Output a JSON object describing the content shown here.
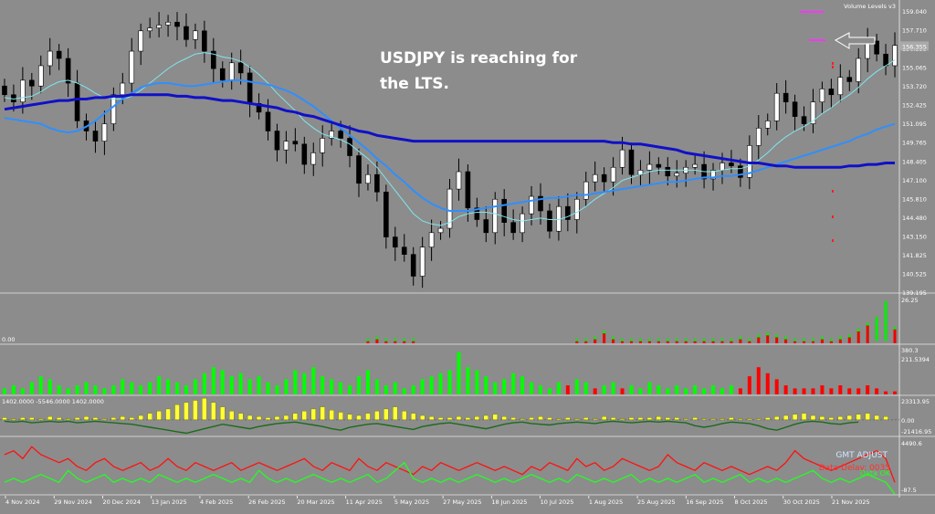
{
  "chart_data": {
    "type": "candlestick",
    "annotation": [
      "USDJPY is reaching for",
      "the LTS."
    ],
    "indicator_label": "Volume Levels v3",
    "price_axis": [
      "159.040",
      "157.710",
      "156.355",
      "155.065",
      "153.720",
      "152.425",
      "151.095",
      "149.765",
      "148.405",
      "147.100",
      "145.810",
      "144.480",
      "143.150",
      "141.825",
      "140.525",
      "139.195"
    ],
    "current_price": "156.355",
    "x_labels": [
      "4 Nov 2024",
      "29 Nov 2024",
      "20 Dec 2024",
      "13 Jan 2025",
      "4 Feb 2025",
      "26 Feb 2025",
      "20 Mar 2025",
      "11 Apr 2025",
      "5 May 2025",
      "27 May 2025",
      "18 Jun 2025",
      "10 Jul 2025",
      "1 Aug 2025",
      "25 Aug 2025",
      "16 Sep 2025",
      "8 Oct 2025",
      "30 Oct 2025",
      "21 Nov 2025"
    ],
    "close": [
      153.0,
      152.5,
      154.0,
      153.6,
      155.0,
      156.0,
      155.5,
      153.8,
      151.2,
      150.5,
      149.8,
      151.0,
      153.0,
      153.8,
      156.0,
      157.4,
      157.6,
      157.8,
      158.0,
      157.7,
      156.8,
      157.4,
      156.0,
      154.8,
      154.0,
      155.2,
      154.5,
      152.4,
      151.8,
      150.5,
      149.2,
      149.8,
      149.6,
      148.2,
      149.0,
      150.0,
      150.5,
      150.0,
      148.8,
      146.9,
      147.5,
      146.3,
      143.2,
      142.5,
      142.0,
      140.5,
      142.5,
      143.5,
      143.8,
      146.5,
      147.7,
      145.2,
      144.4,
      143.5,
      145.8,
      144.2,
      143.5,
      144.8,
      146.0,
      145.0,
      143.6,
      145.3,
      144.4,
      145.8,
      147.0,
      147.5,
      147.0,
      148.0,
      149.2,
      147.5,
      147.8,
      148.2,
      148.0,
      147.4,
      147.6,
      148.0,
      148.2,
      147.2,
      147.8,
      148.3,
      148.1,
      147.3,
      149.5,
      150.7,
      151.2,
      153.1,
      152.5,
      151.5,
      151.0,
      152.5,
      153.4,
      153.0,
      154.2,
      153.9,
      155.5,
      156.7,
      155.8,
      155.0,
      156.4
    ],
    "wma20": [
      152.8,
      152.7,
      152.8,
      152.9,
      153.2,
      153.6,
      153.9,
      154.0,
      153.8,
      153.5,
      153.1,
      152.8,
      152.7,
      152.7,
      152.9,
      153.3,
      153.8,
      154.3,
      154.8,
      155.2,
      155.5,
      155.8,
      155.9,
      155.8,
      155.6,
      155.5,
      155.3,
      154.9,
      154.4,
      153.8,
      153.1,
      152.5,
      151.9,
      151.2,
      150.7,
      150.3,
      150.1,
      149.9,
      149.6,
      149.1,
      148.6,
      148.0,
      147.2,
      146.4,
      145.6,
      144.8,
      144.3,
      144.1,
      144.0,
      144.2,
      144.6,
      144.8,
      144.9,
      144.9,
      144.8,
      144.6,
      144.4,
      144.3,
      144.4,
      144.5,
      144.4,
      144.4,
      144.6,
      144.9,
      145.3,
      145.8,
      146.2,
      146.6,
      147.1,
      147.3,
      147.5,
      147.7,
      147.8,
      147.8,
      147.8,
      147.8,
      147.8,
      147.7,
      147.7,
      147.8,
      147.9,
      147.9,
      148.1,
      148.5,
      149.0,
      149.6,
      150.1,
      150.5,
      150.8,
      151.2,
      151.7,
      152.1,
      152.6,
      153.0,
      153.5,
      154.1,
      154.6,
      155.0,
      155.4
    ],
    "sma50": [
      151.4,
      151.3,
      151.2,
      151.1,
      151.0,
      150.7,
      150.5,
      150.4,
      150.5,
      150.8,
      151.2,
      151.7,
      152.2,
      152.7,
      153.1,
      153.5,
      153.7,
      153.8,
      153.8,
      153.7,
      153.6,
      153.6,
      153.7,
      153.8,
      153.9,
      154.0,
      154.0,
      153.9,
      153.8,
      153.7,
      153.5,
      153.3,
      153.0,
      152.6,
      152.2,
      151.7,
      151.2,
      150.7,
      150.2,
      149.7,
      149.2,
      148.6,
      148.1,
      147.5,
      147.0,
      146.4,
      145.9,
      145.5,
      145.2,
      145.0,
      145.0,
      145.0,
      145.1,
      145.2,
      145.3,
      145.4,
      145.5,
      145.6,
      145.7,
      145.8,
      145.9,
      145.9,
      146.0,
      146.1,
      146.1,
      146.2,
      146.3,
      146.4,
      146.5,
      146.6,
      146.7,
      146.8,
      146.9,
      147.0,
      147.0,
      147.1,
      147.2,
      147.3,
      147.3,
      147.4,
      147.4,
      147.5,
      147.6,
      147.8,
      148.0,
      148.2,
      148.4,
      148.6,
      148.8,
      149.0,
      149.2,
      149.4,
      149.6,
      149.8,
      150.1,
      150.3,
      150.6,
      150.8,
      151.0
    ],
    "sma200": [
      152.0,
      152.1,
      152.2,
      152.3,
      152.4,
      152.5,
      152.6,
      152.6,
      152.7,
      152.7,
      152.8,
      152.8,
      152.9,
      152.9,
      153.0,
      153.0,
      153.0,
      153.0,
      153.0,
      152.9,
      152.9,
      152.8,
      152.8,
      152.7,
      152.6,
      152.6,
      152.5,
      152.4,
      152.3,
      152.2,
      152.1,
      151.9,
      151.8,
      151.6,
      151.5,
      151.3,
      151.1,
      150.9,
      150.7,
      150.5,
      150.4,
      150.2,
      150.1,
      150.0,
      149.9,
      149.8,
      149.8,
      149.8,
      149.8,
      149.8,
      149.8,
      149.8,
      149.8,
      149.8,
      149.8,
      149.8,
      149.8,
      149.8,
      149.8,
      149.8,
      149.8,
      149.8,
      149.8,
      149.8,
      149.8,
      149.8,
      149.8,
      149.7,
      149.7,
      149.6,
      149.6,
      149.5,
      149.4,
      149.3,
      149.2,
      149.0,
      148.9,
      148.8,
      148.7,
      148.6,
      148.5,
      148.4,
      148.3,
      148.3,
      148.2,
      148.1,
      148.1,
      148.0,
      148.0,
      148.0,
      148.0,
      148.0,
      148.0,
      148.1,
      148.1,
      148.2,
      148.2,
      148.3,
      148.3
    ],
    "panel1": {
      "labels": [
        "26.25",
        "0.00"
      ],
      "values": [
        0,
        0,
        0,
        0,
        0,
        0,
        0,
        0,
        0,
        0,
        0,
        0,
        0,
        0,
        0,
        0,
        0,
        0,
        0,
        0,
        0,
        0,
        0,
        0,
        0,
        0,
        0,
        0,
        0,
        0,
        0,
        0,
        0,
        0,
        0,
        0,
        0,
        0,
        0,
        0,
        -1,
        -2,
        -1,
        -1,
        -1,
        -1,
        0,
        0,
        0,
        0,
        0,
        0,
        0,
        0,
        0,
        0,
        0,
        0,
        0,
        0,
        0,
        0,
        0,
        -1,
        -1,
        -2,
        -5,
        -2,
        -1,
        -1,
        -1,
        -1,
        -1,
        -1,
        -1,
        -1,
        -1,
        -1,
        -1,
        -1,
        -1,
        -2,
        -1,
        -3,
        -4,
        -3,
        -2,
        -1,
        -1,
        -1,
        -2,
        -1,
        -2,
        -3,
        -6,
        -9,
        12,
        20,
        -7
      ]
    },
    "panel2": {
      "labels": [
        "380.3",
        "211.5394"
      ],
      "values": [
        2,
        3,
        2,
        4,
        6,
        5,
        3,
        2,
        3,
        4,
        3,
        2,
        3,
        5,
        4,
        3,
        4,
        6,
        5,
        4,
        3,
        5,
        7,
        9,
        8,
        6,
        7,
        5,
        6,
        4,
        3,
        5,
        8,
        7,
        9,
        6,
        5,
        4,
        3,
        6,
        8,
        5,
        3,
        4,
        2,
        3,
        5,
        6,
        7,
        8,
        14,
        9,
        8,
        6,
        4,
        5,
        7,
        6,
        4,
        3,
        2,
        4,
        -3,
        5,
        4,
        -2,
        3,
        4,
        -2,
        3,
        2,
        4,
        3,
        2,
        3,
        2,
        3,
        2,
        3,
        2,
        3,
        -2,
        -6,
        -9,
        -7,
        -5,
        -3,
        -2,
        -2,
        -2,
        -3,
        -2,
        -3,
        -2,
        -2,
        -3,
        -2,
        -1,
        -1
      ]
    },
    "panel3": {
      "labels": [
        "23313.95",
        "0.00",
        "-21416.95"
      ],
      "header": "1402.0000 -5546.0000 1402.0000",
      "bars": [
        2,
        1,
        2,
        2,
        1,
        3,
        2,
        1,
        2,
        3,
        2,
        1,
        2,
        3,
        2,
        4,
        6,
        8,
        10,
        14,
        16,
        18,
        20,
        16,
        12,
        8,
        6,
        4,
        3,
        2,
        3,
        4,
        6,
        8,
        10,
        12,
        9,
        7,
        5,
        4,
        6,
        8,
        10,
        12,
        8,
        6,
        4,
        3,
        2,
        2,
        3,
        2,
        3,
        4,
        5,
        3,
        2,
        1,
        2,
        3,
        2,
        1,
        2,
        1,
        2,
        1,
        3,
        2,
        1,
        2,
        2,
        2,
        3,
        2,
        2,
        1,
        2,
        1,
        1,
        1,
        2,
        1,
        1,
        1,
        2,
        3,
        4,
        5,
        6,
        4,
        3,
        2,
        3,
        4,
        5,
        6,
        4,
        3
      ],
      "line": [
        -2,
        -3,
        -2,
        -4,
        -3,
        -2,
        -3,
        -2,
        -4,
        -3,
        -2,
        -3,
        -4,
        -5,
        -6,
        -8,
        -10,
        -12,
        -14,
        -16,
        -18,
        -15,
        -12,
        -9,
        -6,
        -8,
        -10,
        -12,
        -9,
        -7,
        -5,
        -4,
        -3,
        -5,
        -7,
        -9,
        -12,
        -14,
        -10,
        -8,
        -6,
        -5,
        -7,
        -9,
        -11,
        -13,
        -9,
        -7,
        -5,
        -4,
        -6,
        -8,
        -10,
        -12,
        -9,
        -6,
        -4,
        -3,
        -5,
        -6,
        -7,
        -5,
        -4,
        -3,
        -4,
        -5,
        -3,
        -2,
        -3,
        -4,
        -3,
        -2,
        -3,
        -2,
        -3,
        -4,
        -8,
        -10,
        -8,
        -5,
        -3,
        -4,
        -5,
        -8,
        -12,
        -14,
        -10,
        -6,
        -3,
        -2,
        -3,
        -5,
        -6,
        -4,
        -3
      ]
    },
    "panel4": {
      "labels": [
        "4490.6",
        "-87.5"
      ],
      "legend": [
        "GMT ADJUST",
        "Data Delay: 0035",
        "Data OK"
      ],
      "red": [
        9,
        10,
        8,
        11,
        9,
        8,
        7,
        8,
        6,
        5,
        7,
        8,
        6,
        5,
        6,
        7,
        5,
        6,
        8,
        6,
        5,
        7,
        6,
        5,
        6,
        7,
        5,
        6,
        7,
        6,
        5,
        6,
        7,
        8,
        6,
        5,
        7,
        6,
        5,
        8,
        6,
        5,
        7,
        6,
        5,
        4,
        6,
        5,
        7,
        6,
        5,
        6,
        7,
        6,
        5,
        6,
        5,
        4,
        6,
        5,
        7,
        6,
        5,
        8,
        6,
        7,
        5,
        6,
        8,
        7,
        6,
        5,
        6,
        9,
        7,
        6,
        5,
        7,
        6,
        5,
        6,
        5,
        4,
        5,
        6,
        5,
        7,
        10,
        8,
        7,
        6,
        5,
        6,
        7,
        8,
        9,
        10,
        8,
        2
      ],
      "green": [
        2,
        3,
        2,
        3,
        4,
        3,
        2,
        5,
        3,
        2,
        3,
        4,
        2,
        3,
        2,
        3,
        2,
        4,
        3,
        2,
        3,
        2,
        3,
        4,
        3,
        2,
        3,
        2,
        5,
        3,
        2,
        3,
        2,
        3,
        4,
        3,
        2,
        3,
        2,
        3,
        4,
        2,
        3,
        5,
        7,
        3,
        2,
        3,
        2,
        3,
        2,
        3,
        4,
        3,
        2,
        3,
        2,
        3,
        4,
        3,
        2,
        3,
        2,
        4,
        3,
        2,
        3,
        2,
        3,
        4,
        2,
        3,
        2,
        3,
        2,
        3,
        4,
        2,
        3,
        2,
        3,
        4,
        2,
        3,
        2,
        3,
        2,
        3,
        4,
        5,
        3,
        2,
        3,
        2,
        3,
        4,
        3,
        2,
        -1
      ]
    }
  }
}
